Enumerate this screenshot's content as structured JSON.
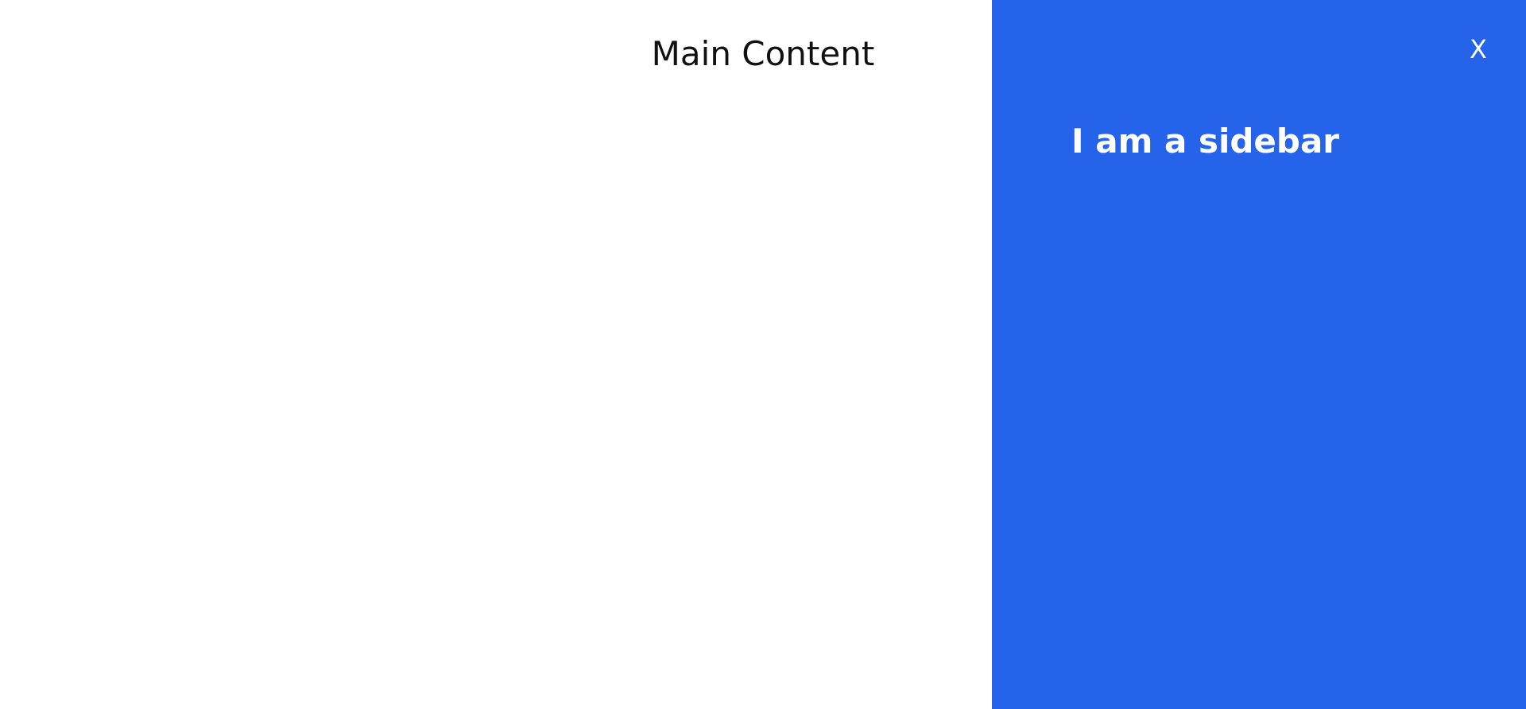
{
  "main": {
    "title": "Main Content"
  },
  "sidebar": {
    "heading": "I am a sidebar",
    "close_label": "X",
    "background_color": "#2563eb"
  }
}
